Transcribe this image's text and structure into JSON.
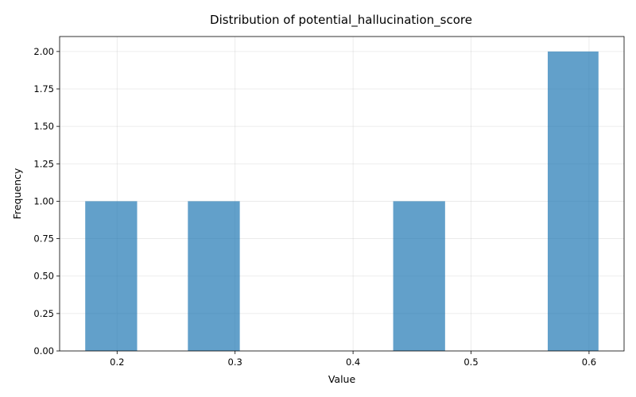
{
  "chart_data": {
    "type": "bar",
    "title": "Distribution of potential_hallucination_score",
    "xlabel": "Value",
    "ylabel": "Frequency",
    "bins": [
      {
        "start": 0.173,
        "end": 0.217,
        "count": 1
      },
      {
        "start": 0.217,
        "end": 0.26,
        "count": 0
      },
      {
        "start": 0.26,
        "end": 0.304,
        "count": 1
      },
      {
        "start": 0.304,
        "end": 0.347,
        "count": 0
      },
      {
        "start": 0.347,
        "end": 0.391,
        "count": 0
      },
      {
        "start": 0.391,
        "end": 0.434,
        "count": 0
      },
      {
        "start": 0.434,
        "end": 0.478,
        "count": 1
      },
      {
        "start": 0.478,
        "end": 0.521,
        "count": 0
      },
      {
        "start": 0.521,
        "end": 0.565,
        "count": 0
      },
      {
        "start": 0.565,
        "end": 0.608,
        "count": 2
      }
    ],
    "xlim": [
      0.1513,
      0.6297
    ],
    "ylim": [
      0,
      2.1
    ],
    "xticks": [
      0.2,
      0.3,
      0.4,
      0.5,
      0.6
    ],
    "xtick_labels": [
      "0.2",
      "0.3",
      "0.4",
      "0.5",
      "0.6"
    ],
    "yticks": [
      0,
      0.25,
      0.5,
      0.75,
      1.0,
      1.25,
      1.5,
      1.75,
      2.0
    ],
    "ytick_labels": [
      "0.00",
      "0.25",
      "0.50",
      "0.75",
      "1.00",
      "1.25",
      "1.50",
      "1.75",
      "2.00"
    ],
    "grid": true,
    "color": "#1f77b4"
  }
}
